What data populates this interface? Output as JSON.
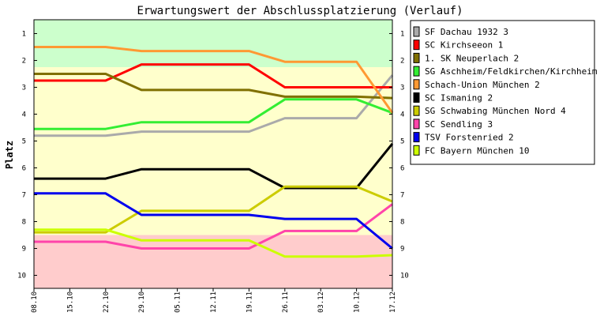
{
  "chart_data": {
    "type": "line",
    "title": "Erwartungswert der Abschlussplatzierung (Verlauf)",
    "xlabel": "",
    "ylabel": "Platz",
    "ylim": [
      0.5,
      10.5
    ],
    "y_inverted": true,
    "yticks": [
      "1",
      "2",
      "3",
      "4",
      "5",
      "6",
      "7",
      "8",
      "9",
      "10"
    ],
    "x": [
      "08.10",
      "15.10",
      "22.10",
      "29.10",
      "05.11",
      "12.11",
      "19.11",
      "26.11",
      "03.12",
      "10.12",
      "17.12"
    ],
    "bands": [
      {
        "name": "aufstieg",
        "from": 0.5,
        "to": 2.25,
        "color": "#ccffcc"
      },
      {
        "name": "mittelfeld",
        "from": 2.25,
        "to": 8.5,
        "color": "#ffffcc"
      },
      {
        "name": "abstieg",
        "from": 8.5,
        "to": 10.5,
        "color": "#ffcccc"
      }
    ],
    "series": [
      {
        "name": "SF Dachau 1932 3",
        "color": "#aaaaaa",
        "values": [
          4.8,
          4.8,
          4.8,
          4.65,
          4.65,
          4.65,
          4.65,
          4.15,
          4.15,
          4.15,
          2.55
        ]
      },
      {
        "name": "SC Kirchseeon 1",
        "color": "#ff0000",
        "values": [
          2.75,
          2.75,
          2.75,
          2.15,
          2.15,
          2.15,
          2.15,
          3.0,
          3.0,
          3.0,
          3.0
        ]
      },
      {
        "name": "1. SK Neuperlach 2",
        "color": "#807000",
        "values": [
          2.5,
          2.5,
          2.5,
          3.1,
          3.1,
          3.1,
          3.1,
          3.35,
          3.35,
          3.35,
          3.4
        ]
      },
      {
        "name": "SG Aschheim/Feldkirchen/Kirchheim 4",
        "color": "#33ee33",
        "values": [
          4.55,
          4.55,
          4.55,
          4.3,
          4.3,
          4.3,
          4.3,
          3.45,
          3.45,
          3.45,
          3.95
        ]
      },
      {
        "name": "Schach-Union München 2",
        "color": "#ff9933",
        "values": [
          1.5,
          1.5,
          1.5,
          1.65,
          1.65,
          1.65,
          1.65,
          2.05,
          2.05,
          2.05,
          3.95
        ]
      },
      {
        "name": "SC Ismaning 2",
        "color": "#000000",
        "values": [
          6.4,
          6.4,
          6.4,
          6.05,
          6.05,
          6.05,
          6.05,
          6.75,
          6.75,
          6.75,
          5.1
        ]
      },
      {
        "name": "SG Schwabing München Nord 4",
        "color": "#cccc00",
        "values": [
          8.4,
          8.4,
          8.4,
          7.6,
          7.6,
          7.6,
          7.6,
          6.7,
          6.7,
          6.7,
          7.25
        ]
      },
      {
        "name": "SC Sendling 3",
        "color": "#ff44aa",
        "values": [
          8.75,
          8.75,
          8.75,
          9.0,
          9.0,
          9.0,
          9.0,
          8.35,
          8.35,
          8.35,
          7.35
        ]
      },
      {
        "name": "TSV Forstenried 2",
        "color": "#0000ee",
        "values": [
          6.95,
          6.95,
          6.95,
          7.75,
          7.75,
          7.75,
          7.75,
          7.9,
          7.9,
          7.9,
          9.0
        ]
      },
      {
        "name": "FC Bayern München 10",
        "color": "#ccff00",
        "values": [
          8.3,
          8.3,
          8.3,
          8.7,
          8.7,
          8.7,
          8.7,
          9.3,
          9.3,
          9.3,
          9.25
        ]
      }
    ],
    "legend_position": "top-right"
  }
}
